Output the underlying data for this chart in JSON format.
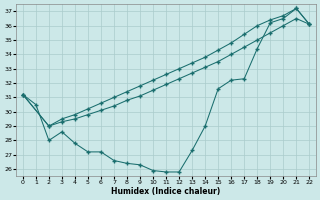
{
  "xlabel": "Humidex (Indice chaleur)",
  "xlim": [
    -0.5,
    22.5
  ],
  "ylim": [
    25.5,
    37.5
  ],
  "yticks": [
    26,
    27,
    28,
    29,
    30,
    31,
    32,
    33,
    34,
    35,
    36,
    37
  ],
  "xticks": [
    0,
    1,
    2,
    3,
    4,
    5,
    6,
    7,
    8,
    9,
    10,
    11,
    12,
    13,
    14,
    15,
    16,
    17,
    18,
    19,
    20,
    21,
    22
  ],
  "bg_color": "#cce8e8",
  "grid_color": "#aacccc",
  "line_color": "#1a6e6e",
  "line1_x": [
    0,
    1,
    2,
    3,
    4,
    5,
    6,
    7,
    8,
    9,
    10,
    11,
    12,
    13,
    14,
    15,
    16,
    17,
    18,
    19,
    20,
    21,
    22
  ],
  "line1_y": [
    31.2,
    30.5,
    28.0,
    28.6,
    27.8,
    27.2,
    27.2,
    26.6,
    26.4,
    26.3,
    25.9,
    25.8,
    25.8,
    27.3,
    29.0,
    31.6,
    32.2,
    32.3,
    34.4,
    36.2,
    36.5,
    37.2,
    36.1
  ],
  "line2_x": [
    0,
    2,
    3,
    4,
    5,
    6,
    7,
    8,
    9,
    10,
    11,
    12,
    13,
    14,
    15,
    16,
    17,
    18,
    19,
    20,
    21,
    22
  ],
  "line2_y": [
    31.2,
    29.0,
    29.3,
    29.5,
    29.8,
    30.1,
    30.4,
    30.8,
    31.1,
    31.5,
    31.9,
    32.3,
    32.7,
    33.1,
    33.5,
    34.0,
    34.5,
    35.0,
    35.5,
    36.0,
    36.5,
    36.1
  ],
  "line3_x": [
    0,
    2,
    3,
    4,
    5,
    6,
    7,
    8,
    9,
    10,
    11,
    12,
    13,
    14,
    15,
    16,
    17,
    18,
    19,
    20,
    21,
    22
  ],
  "line3_y": [
    31.2,
    29.0,
    29.5,
    29.8,
    30.2,
    30.6,
    31.0,
    31.4,
    31.8,
    32.2,
    32.6,
    33.0,
    33.4,
    33.8,
    34.3,
    34.8,
    35.4,
    36.0,
    36.4,
    36.7,
    37.2,
    36.1
  ]
}
